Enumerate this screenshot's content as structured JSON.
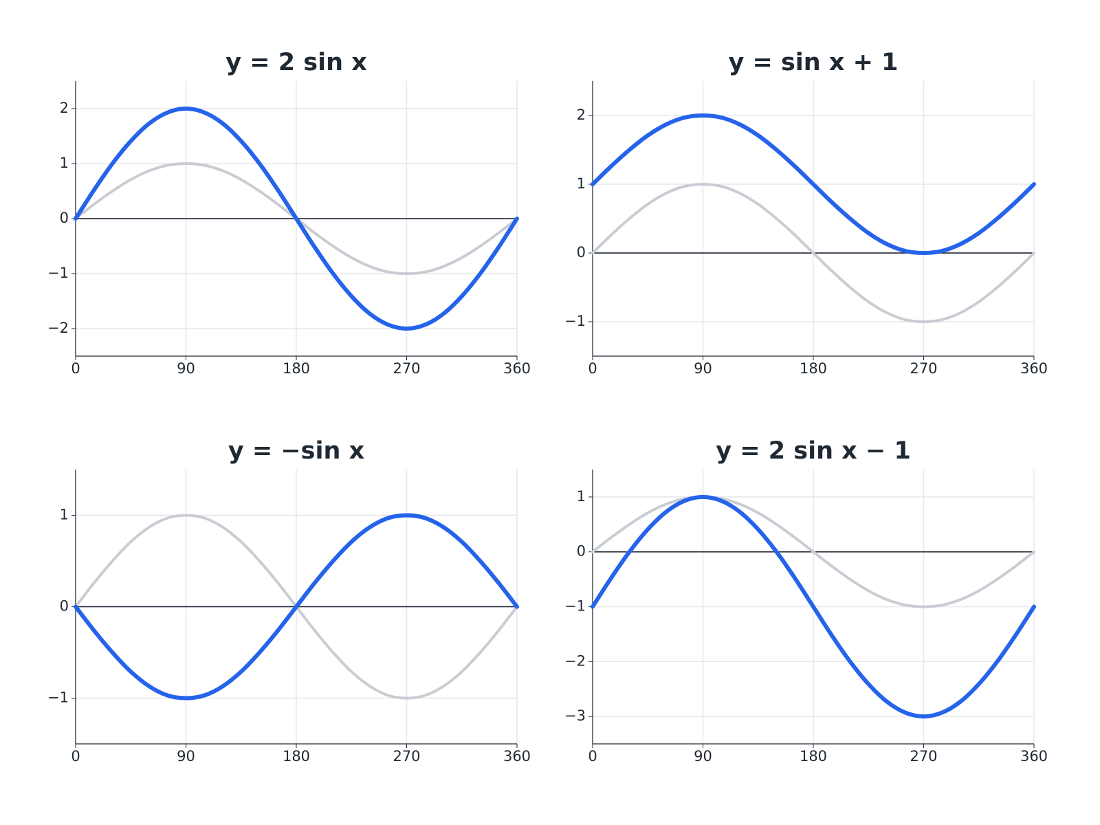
{
  "chart_data": [
    {
      "type": "line",
      "title": "y = 2 sin x",
      "x": [
        0,
        15,
        30,
        45,
        60,
        75,
        90,
        105,
        120,
        135,
        150,
        165,
        180,
        195,
        210,
        225,
        240,
        255,
        270,
        285,
        300,
        315,
        330,
        345,
        360
      ],
      "series": [
        {
          "color": "#c9cdd3",
          "values": [
            0,
            0.26,
            0.5,
            0.71,
            0.87,
            0.97,
            1,
            0.97,
            0.87,
            0.71,
            0.5,
            0.26,
            0,
            -0.26,
            -0.5,
            -0.71,
            -0.87,
            -0.97,
            -1,
            -0.97,
            -0.87,
            -0.71,
            -0.5,
            -0.26,
            0
          ]
        },
        {
          "color": "#2563eb",
          "values": [
            0,
            0.52,
            1,
            1.41,
            1.73,
            1.93,
            2,
            1.93,
            1.73,
            1.41,
            1,
            0.52,
            0,
            -0.52,
            -1,
            -1.41,
            -1.73,
            -1.93,
            -2,
            -1.93,
            -1.73,
            -1.41,
            -1,
            -0.52,
            0
          ]
        }
      ],
      "xlim": [
        0,
        360
      ],
      "xticks": [
        0,
        90,
        180,
        270,
        360
      ],
      "ylim": [
        -2.5,
        2.5
      ],
      "yticks": [
        {
          "value": -2,
          "label": "−2"
        },
        {
          "value": -1,
          "label": "−1"
        },
        0,
        1,
        2
      ],
      "hline": 0,
      "grid": true
    },
    {
      "type": "line",
      "title": "y = sin x + 1",
      "x": [
        0,
        15,
        30,
        45,
        60,
        75,
        90,
        105,
        120,
        135,
        150,
        165,
        180,
        195,
        210,
        225,
        240,
        255,
        270,
        285,
        300,
        315,
        330,
        345,
        360
      ],
      "series": [
        {
          "color": "#c9cdd3",
          "values": [
            0,
            0.26,
            0.5,
            0.71,
            0.87,
            0.97,
            1,
            0.97,
            0.87,
            0.71,
            0.5,
            0.26,
            0,
            -0.26,
            -0.5,
            -0.71,
            -0.87,
            -0.97,
            -1,
            -0.97,
            -0.87,
            -0.71,
            -0.5,
            -0.26,
            0
          ]
        },
        {
          "color": "#2563eb",
          "values": [
            1,
            1.26,
            1.5,
            1.71,
            1.87,
            1.97,
            2,
            1.97,
            1.87,
            1.71,
            1.5,
            1.26,
            1,
            0.74,
            0.5,
            0.29,
            0.13,
            0.03,
            0,
            0.03,
            0.13,
            0.29,
            0.5,
            0.74,
            1
          ]
        }
      ],
      "xlim": [
        0,
        360
      ],
      "xticks": [
        0,
        90,
        180,
        270,
        360
      ],
      "ylim": [
        -1.5,
        2.5
      ],
      "yticks": [
        {
          "value": -1,
          "label": "−1"
        },
        0,
        1,
        2
      ],
      "hline": 0,
      "grid": true
    },
    {
      "type": "line",
      "title": "y = −sin x",
      "x": [
        0,
        15,
        30,
        45,
        60,
        75,
        90,
        105,
        120,
        135,
        150,
        165,
        180,
        195,
        210,
        225,
        240,
        255,
        270,
        285,
        300,
        315,
        330,
        345,
        360
      ],
      "series": [
        {
          "color": "#c9cdd3",
          "values": [
            0,
            0.26,
            0.5,
            0.71,
            0.87,
            0.97,
            1,
            0.97,
            0.87,
            0.71,
            0.5,
            0.26,
            0,
            -0.26,
            -0.5,
            -0.71,
            -0.87,
            -0.97,
            -1,
            -0.97,
            -0.87,
            -0.71,
            -0.5,
            -0.26,
            0
          ]
        },
        {
          "color": "#2563eb",
          "values": [
            0,
            -0.26,
            -0.5,
            -0.71,
            -0.87,
            -0.97,
            -1,
            -0.97,
            -0.87,
            -0.71,
            -0.5,
            -0.26,
            0,
            0.26,
            0.5,
            0.71,
            0.87,
            0.97,
            1,
            0.97,
            0.87,
            0.71,
            0.5,
            0.26,
            0
          ]
        }
      ],
      "xlim": [
        0,
        360
      ],
      "xticks": [
        0,
        90,
        180,
        270,
        360
      ],
      "ylim": [
        -1.5,
        1.5
      ],
      "yticks": [
        {
          "value": -1,
          "label": "−1"
        },
        0,
        1
      ],
      "hline": 0,
      "grid": true
    },
    {
      "type": "line",
      "title": "y = 2 sin x − 1",
      "x": [
        0,
        15,
        30,
        45,
        60,
        75,
        90,
        105,
        120,
        135,
        150,
        165,
        180,
        195,
        210,
        225,
        240,
        255,
        270,
        285,
        300,
        315,
        330,
        345,
        360
      ],
      "series": [
        {
          "color": "#c9cdd3",
          "values": [
            0,
            0.26,
            0.5,
            0.71,
            0.87,
            0.97,
            1,
            0.97,
            0.87,
            0.71,
            0.5,
            0.26,
            0,
            -0.26,
            -0.5,
            -0.71,
            -0.87,
            -0.97,
            -1,
            -0.97,
            -0.87,
            -0.71,
            -0.5,
            -0.26,
            0
          ]
        },
        {
          "color": "#2563eb",
          "values": [
            -1,
            -0.48,
            0,
            0.41,
            0.73,
            0.93,
            1,
            0.93,
            0.73,
            0.41,
            0,
            -0.48,
            -1,
            -1.52,
            -2,
            -2.41,
            -2.73,
            -2.93,
            -3,
            -2.93,
            -2.73,
            -2.41,
            -2,
            -1.52,
            -1
          ]
        }
      ],
      "xlim": [
        0,
        360
      ],
      "xticks": [
        0,
        90,
        180,
        270,
        360
      ],
      "ylim": [
        -3.5,
        1.5
      ],
      "yticks": [
        {
          "value": -3,
          "label": "−3"
        },
        {
          "value": -2,
          "label": "−2"
        },
        {
          "value": -1,
          "label": "−1"
        },
        0,
        1
      ],
      "hline": 0,
      "grid": true
    }
  ]
}
